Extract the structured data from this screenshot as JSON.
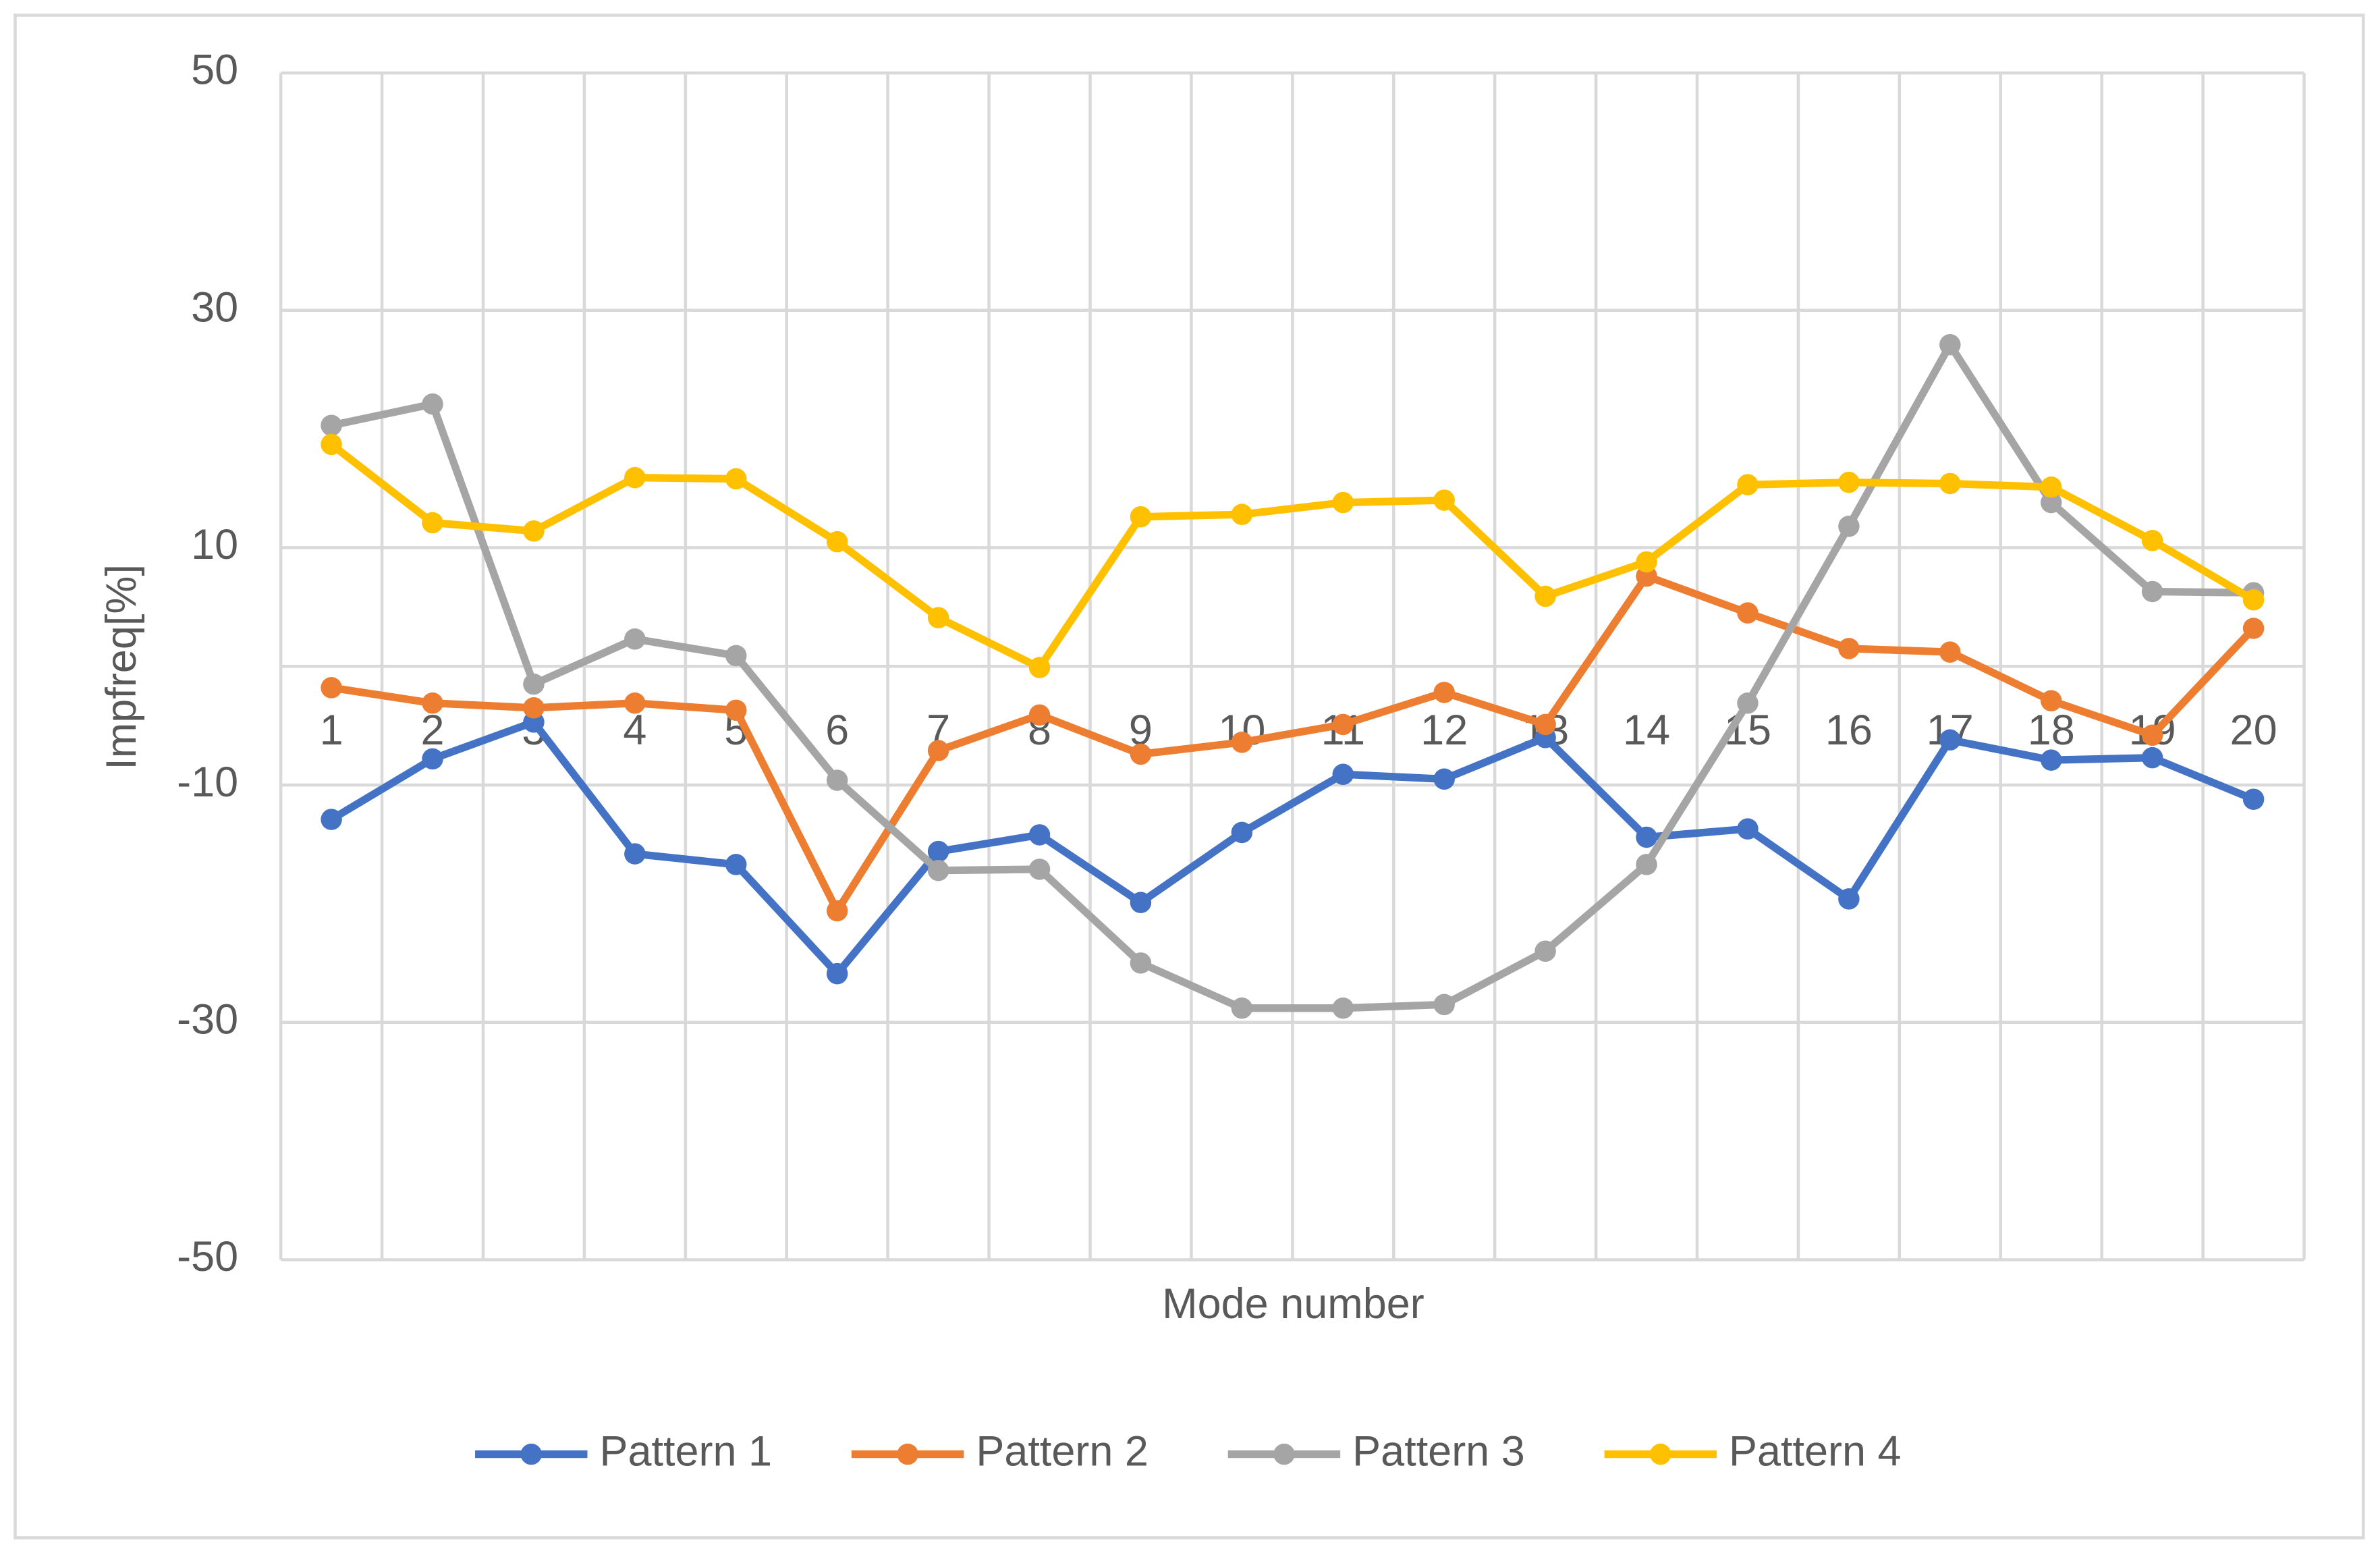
{
  "chart_data": {
    "type": "line",
    "x_label": "Mode number",
    "y_label": "Impfreq[%]",
    "categories": [
      "1",
      "2",
      "3",
      "4",
      "5",
      "6",
      "7",
      "8",
      "9",
      "10",
      "11",
      "12",
      "13",
      "14",
      "15",
      "16",
      "17",
      "18",
      "19",
      "20"
    ],
    "series": [
      {
        "name": "Pattern 1",
        "color": "#4472c4",
        "values": [
          -12.9,
          -7.8,
          -4.7,
          -15.8,
          -16.7,
          -25.9,
          -15.6,
          -14.2,
          -19.9,
          -14,
          -9.1,
          -9.5,
          -6,
          -14.4,
          -13.7,
          -19.6,
          -6.2,
          -7.9,
          -7.7,
          -11.2
        ]
      },
      {
        "name": "Pattern 2",
        "color": "#ed7d31",
        "values": [
          -1.8,
          -3.1,
          -3.5,
          -3.1,
          -3.7,
          -20.6,
          -7.1,
          -4.1,
          -7.4,
          -6.4,
          -4.9,
          -2.2,
          -4.9,
          7.6,
          4.5,
          1.5,
          1.2,
          -2.9,
          -5.8,
          3.2
        ]
      },
      {
        "name": "Pattern 3",
        "color": "#a5a5a5",
        "values": [
          20.3,
          22.1,
          -1.5,
          2.3,
          0.9,
          -9.6,
          -17.2,
          -17.1,
          -25,
          -28.8,
          -28.8,
          -28.5,
          -24,
          -16.7,
          -3.1,
          11.8,
          27.1,
          13.8,
          6.3,
          6.2
        ]
      },
      {
        "name": "Pattern 4",
        "color": "#ffc000",
        "values": [
          18.7,
          12.1,
          11.4,
          15.9,
          15.8,
          10.5,
          4.1,
          -0.1,
          12.6,
          12.8,
          13.8,
          14,
          5.9,
          8.8,
          15.3,
          15.5,
          15.4,
          15.1,
          10.6,
          5.6
        ]
      }
    ],
    "ylim": [
      -50,
      50
    ],
    "yticks": [
      -50,
      -30,
      -10,
      10,
      30,
      50
    ],
    "grid": true,
    "legend": "bottom"
  }
}
